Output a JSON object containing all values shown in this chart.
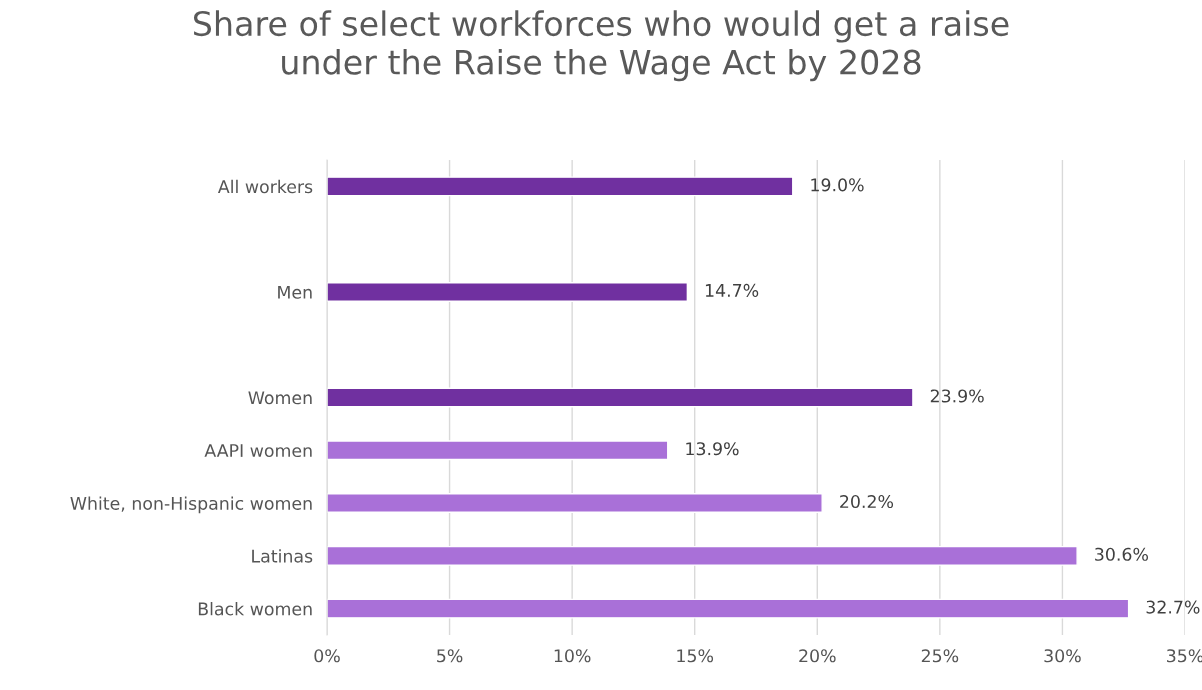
{
  "chart_data": {
    "type": "bar",
    "orientation": "horizontal",
    "title": "Share of select workforces who would get a raise\nunder the Raise the Wage Act by 2028",
    "categories": [
      "All workers",
      null,
      "Men",
      null,
      "Women",
      "AAPI women",
      "White, non-Hispanic women",
      "Latinas",
      "Black women"
    ],
    "values": [
      19.0,
      null,
      14.7,
      null,
      23.9,
      13.9,
      20.2,
      30.6,
      32.7
    ],
    "colors": [
      "#7030a0",
      null,
      "#7030a0",
      null,
      "#7030a0",
      "#a970d8",
      "#a970d8",
      "#a970d8",
      "#a970d8"
    ],
    "value_labels": [
      "19.0%",
      null,
      "14.7%",
      null,
      "23.9%",
      "13.9%",
      "20.2%",
      "30.6%",
      "32.7%"
    ],
    "xlim": [
      0,
      35
    ],
    "xticks": [
      {
        "value": 0,
        "label": "0%"
      },
      {
        "value": 5,
        "label": "5%"
      },
      {
        "value": 10,
        "label": "10%"
      },
      {
        "value": 15,
        "label": "15%"
      },
      {
        "value": 20,
        "label": "20%"
      },
      {
        "value": 25,
        "label": "25%"
      },
      {
        "value": 30,
        "label": "30%"
      },
      {
        "value": 35,
        "label": "35%"
      }
    ],
    "grid": "x"
  }
}
